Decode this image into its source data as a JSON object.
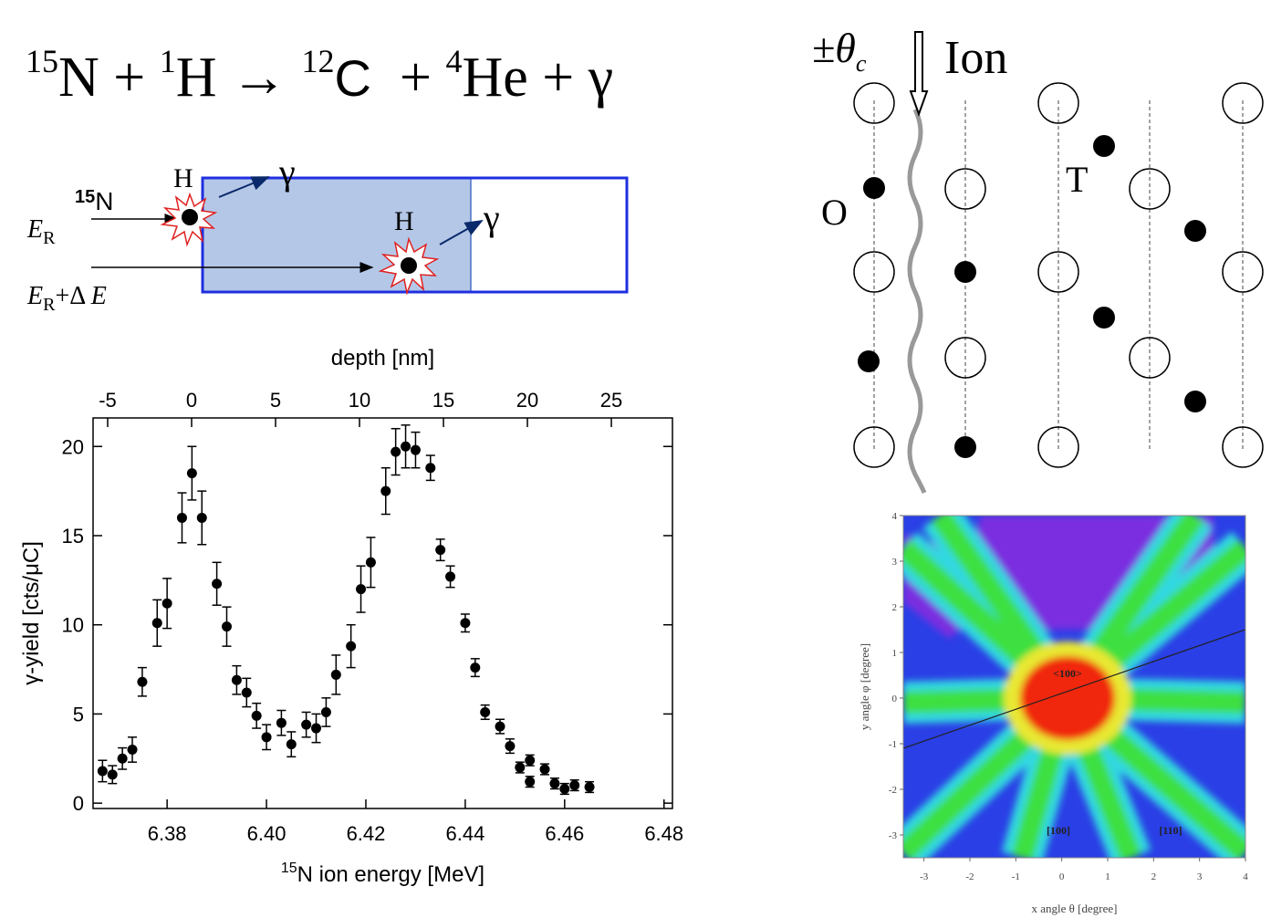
{
  "reaction": {
    "parts": [
      "15",
      "N + ",
      "1",
      "H → ",
      "12",
      "C",
      "  + ",
      "4",
      "He + γ"
    ]
  },
  "diagram": {
    "ion": {
      "mass": "15",
      "symbol": "N"
    },
    "h1": "H",
    "h2": "H",
    "gamma1": "γ",
    "gamma2": "γ",
    "er": {
      "symbol": "E",
      "sub": "R"
    },
    "erde": {
      "symbol": "E",
      "sub": "R",
      "plus": "+Δ ",
      "symbol2": "E"
    }
  },
  "lattice": {
    "theta": {
      "symbol": "±θ",
      "sub": "c"
    },
    "ion": "Ion",
    "o": "O",
    "t": "T"
  },
  "chart_data": [
    {
      "type": "scatter",
      "xlabel": {
        "mass": "15",
        "text": "N ion energy [MeV]"
      },
      "ylabel": "γ-yield [cts/μC]",
      "x2label": "depth [nm]",
      "x": [
        6.367,
        6.369,
        6.371,
        6.373,
        6.375,
        6.378,
        6.38,
        6.383,
        6.385,
        6.387,
        6.39,
        6.392,
        6.394,
        6.396,
        6.398,
        6.4,
        6.403,
        6.405,
        6.408,
        6.41,
        6.412,
        6.414,
        6.417,
        6.419,
        6.421,
        6.424,
        6.426,
        6.428,
        6.43,
        6.433,
        6.435,
        6.437,
        6.44,
        6.442,
        6.444,
        6.447,
        6.449,
        6.451,
        6.453,
        6.453,
        6.456,
        6.458,
        6.46,
        6.462,
        6.465
      ],
      "values": [
        1.8,
        1.6,
        2.5,
        3.0,
        6.8,
        10.1,
        11.2,
        16.0,
        18.5,
        16.0,
        12.3,
        9.9,
        6.9,
        6.2,
        4.9,
        3.7,
        4.5,
        3.3,
        4.4,
        4.2,
        5.1,
        7.2,
        8.8,
        12.0,
        13.5,
        17.5,
        19.7,
        20.0,
        19.8,
        18.8,
        14.2,
        12.7,
        10.1,
        7.6,
        5.1,
        4.3,
        3.2,
        2.0,
        2.4,
        1.2,
        1.9,
        1.1,
        0.8,
        1.0,
        0.9
      ],
      "yerr": [
        0.6,
        0.5,
        0.6,
        0.7,
        0.8,
        1.3,
        1.4,
        1.4,
        1.5,
        1.5,
        1.2,
        1.1,
        0.8,
        0.8,
        0.7,
        0.7,
        0.7,
        0.7,
        0.7,
        0.8,
        0.8,
        1.1,
        1.2,
        1.3,
        1.4,
        1.3,
        1.3,
        1.2,
        1.0,
        0.7,
        0.6,
        0.6,
        0.5,
        0.5,
        0.4,
        0.4,
        0.4,
        0.3,
        0.3,
        0.3,
        0.3,
        0.3,
        0.3,
        0.3,
        0.3
      ],
      "color": "#000000",
      "xlim": [
        6.3651,
        6.4817
      ],
      "xticks": [
        6.38,
        {
          "value": 6.4,
          "label": "6.40"
        },
        6.42,
        6.44,
        6.46,
        6.48
      ],
      "ylim": [
        -0.3,
        21.6
      ],
      "yticks": [
        0,
        5,
        10,
        15,
        20
      ],
      "x2lim": [
        -5.87,
        28.64
      ],
      "x2ticks": [
        -5,
        0,
        5,
        10,
        15,
        20,
        25
      ]
    },
    {
      "type": "map",
      "xlabel": "x angle θ [degree]",
      "ylabel": "y angle φ [degree]",
      "annotations": [
        "<100>",
        "[100]",
        "[110]"
      ],
      "xlim": [
        -3.45,
        4
      ],
      "xticks": [
        -3,
        -2,
        -1,
        0,
        1,
        2,
        3,
        4
      ],
      "ylim": [
        -3.5,
        4
      ],
      "yticks": [
        -3,
        -2,
        -1,
        0,
        1,
        2,
        3,
        4
      ]
    }
  ]
}
